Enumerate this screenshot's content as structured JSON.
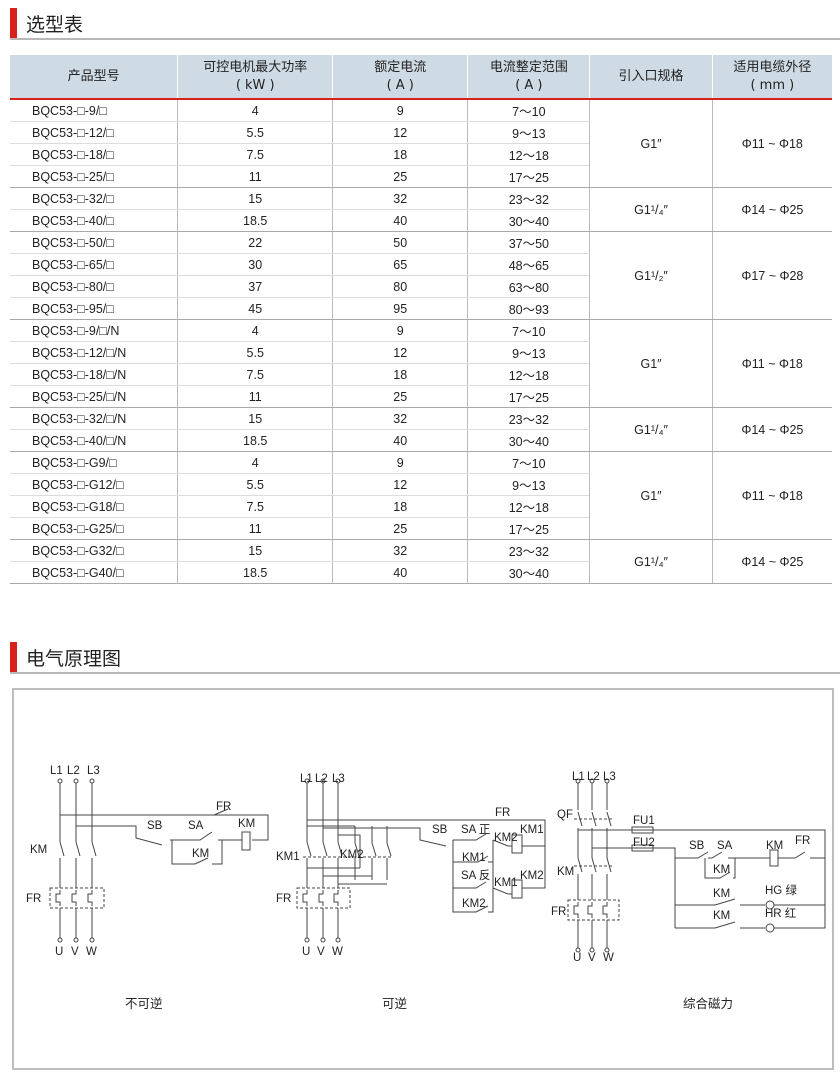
{
  "sections": {
    "selection_title": "选型表",
    "circuit_title": "电气原理图"
  },
  "table": {
    "headers": [
      {
        "line1": "产品型号",
        "line2": ""
      },
      {
        "line1": "可控电机最大功率",
        "line2": "( kW )"
      },
      {
        "line1": "额定电流",
        "line2": "( A )"
      },
      {
        "line1": "电流整定范围",
        "line2": "( A )"
      },
      {
        "line1": "引入口规格",
        "line2": ""
      },
      {
        "line1": "适用电缆外径",
        "line2": "( mm )"
      }
    ],
    "groups": [
      {
        "inlet": "G1″",
        "cable": "Φ11 ~ Φ18",
        "rows": [
          [
            "BQC53-□-9/□",
            "4",
            "9",
            "7～10"
          ],
          [
            "BQC53-□-12/□",
            "5.5",
            "12",
            "9～13"
          ],
          [
            "BQC53-□-18/□",
            "7.5",
            "18",
            "12～18"
          ],
          [
            "BQC53-□-25/□",
            "11",
            "25",
            "17～25"
          ]
        ]
      },
      {
        "inlet": "G1¹/₄″",
        "cable": "Φ14 ~ Φ25",
        "rows": [
          [
            "BQC53-□-32/□",
            "15",
            "32",
            "23～32"
          ],
          [
            "BQC53-□-40/□",
            "18.5",
            "40",
            "30～40"
          ]
        ]
      },
      {
        "inlet": "G1¹/₂″",
        "cable": "Φ17 ~ Φ28",
        "rows": [
          [
            "BQC53-□-50/□",
            "22",
            "50",
            "37～50"
          ],
          [
            "BQC53-□-65/□",
            "30",
            "65",
            "48～65"
          ],
          [
            "BQC53-□-80/□",
            "37",
            "80",
            "63～80"
          ],
          [
            "BQC53-□-95/□",
            "45",
            "95",
            "80～93"
          ]
        ]
      },
      {
        "inlet": "G1″",
        "cable": "Φ11 ~ Φ18",
        "rows": [
          [
            "BQC53-□-9/□/N",
            "4",
            "9",
            "7～10"
          ],
          [
            "BQC53-□-12/□/N",
            "5.5",
            "12",
            "9～13"
          ],
          [
            "BQC53-□-18/□/N",
            "7.5",
            "18",
            "12～18"
          ],
          [
            "BQC53-□-25/□/N",
            "11",
            "25",
            "17～25"
          ]
        ]
      },
      {
        "inlet": "G1¹/₄″",
        "cable": "Φ14 ~ Φ25",
        "rows": [
          [
            "BQC53-□-32/□/N",
            "15",
            "32",
            "23～32"
          ],
          [
            "BQC53-□-40/□/N",
            "18.5",
            "40",
            "30～40"
          ]
        ]
      },
      {
        "inlet": "G1″",
        "cable": "Φ11 ~ Φ18",
        "rows": [
          [
            "BQC53-□-G9/□",
            "4",
            "9",
            "7～10"
          ],
          [
            "BQC53-□-G12/□",
            "5.5",
            "12",
            "9～13"
          ],
          [
            "BQC53-□-G18/□",
            "7.5",
            "18",
            "12～18"
          ],
          [
            "BQC53-□-G25/□",
            "11",
            "25",
            "17～25"
          ]
        ]
      },
      {
        "inlet": "G1¹/₄″",
        "cable": "Φ14 ~ Φ25",
        "rows": [
          [
            "BQC53-□-G32/□",
            "15",
            "32",
            "23～32"
          ],
          [
            "BQC53-□-G40/□",
            "18.5",
            "40",
            "30～40"
          ]
        ]
      }
    ]
  },
  "diagrams": {
    "d1": {
      "caption": "不可逆",
      "L1": "L1",
      "L2": "L2",
      "L3": "L3",
      "KM": "KM",
      "FR": "FR",
      "U": "U",
      "V": "V",
      "W": "W",
      "SB": "SB",
      "SA": "SA",
      "FR_c": "FR",
      "KM_coil": "KM",
      "KM_hold": "KM"
    },
    "d2": {
      "caption": "可逆",
      "L1": "L1",
      "L2": "L2",
      "L3": "L3",
      "KM1": "KM1",
      "KM2": "KM2",
      "FR": "FR",
      "U": "U",
      "V": "V",
      "W": "W",
      "SB": "SB",
      "SA_f": "SA 正",
      "SA_r": "SA 反",
      "FR_c": "FR",
      "KM2_c": "KM2",
      "KM1_coil": "KM1",
      "KM1_hold": "KM1",
      "KM1_c": "KM1",
      "KM2_coil": "KM2",
      "KM2_hold": "KM2"
    },
    "d3": {
      "caption": "综合磁力",
      "L1": "L1",
      "L2": "L2",
      "L3": "L3",
      "QF": "QF",
      "KM": "KM",
      "FR": "FR",
      "U": "U",
      "V": "V",
      "W": "W",
      "FU1": "FU1",
      "FU2": "FU2",
      "SB": "SB",
      "SA": "SA",
      "KM_coil": "KM",
      "FR_c": "FR",
      "KM_hold": "KM",
      "KM_g": "KM",
      "KM_r": "KM",
      "HG": "HG 绿",
      "HR": "HR 红"
    }
  }
}
